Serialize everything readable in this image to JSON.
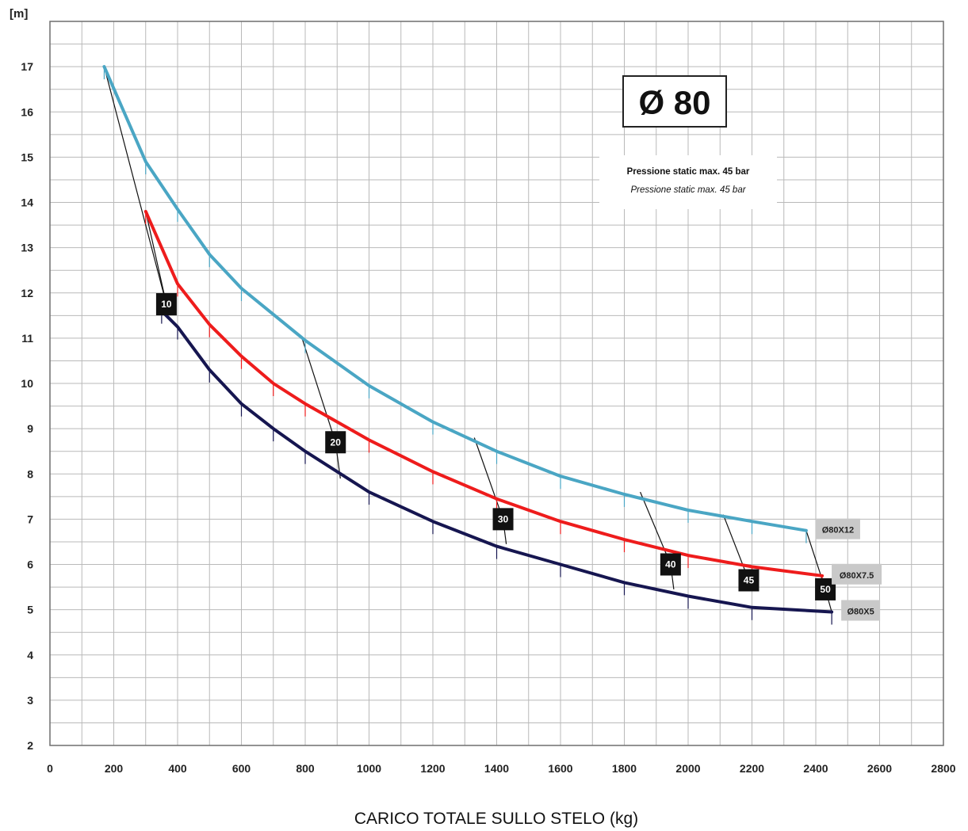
{
  "chart_data": {
    "type": "line",
    "title": "Ø 80",
    "note_lines": [
      "Pressione static max. 45 bar",
      "Pressione static max. 45 bar"
    ],
    "ylabel": "[m]",
    "xlabel": "CARICO TOTALE SULLO STELO (kg)",
    "xlim": [
      0,
      2800
    ],
    "ylim": [
      2,
      18
    ],
    "xticks": [
      0,
      200,
      400,
      600,
      800,
      1000,
      1200,
      1400,
      1600,
      1800,
      2000,
      2200,
      2400,
      2600,
      2800
    ],
    "yticks": [
      2,
      3,
      4,
      5,
      6,
      7,
      8,
      9,
      10,
      11,
      12,
      13,
      14,
      15,
      16,
      17
    ],
    "grid": true,
    "series": [
      {
        "name": "Ø80X12",
        "color": "#4aa6c4",
        "x": [
          170,
          300,
          400,
          500,
          600,
          800,
          1000,
          1200,
          1400,
          1600,
          1800,
          2000,
          2200,
          2370
        ],
        "y": [
          17.0,
          14.9,
          13.85,
          12.85,
          12.1,
          10.95,
          9.95,
          9.15,
          8.5,
          7.95,
          7.55,
          7.2,
          6.95,
          6.75
        ]
      },
      {
        "name": "Ø80X7.5",
        "color": "#ee1c1c",
        "x": [
          300,
          400,
          500,
          600,
          700,
          800,
          1000,
          1200,
          1400,
          1600,
          1800,
          2000,
          2200,
          2420
        ],
        "y": [
          13.8,
          12.2,
          11.3,
          10.6,
          10.0,
          9.55,
          8.75,
          8.05,
          7.45,
          6.95,
          6.55,
          6.2,
          5.95,
          5.75
        ]
      },
      {
        "name": "Ø80X5",
        "color": "#161650",
        "x": [
          350,
          400,
          500,
          600,
          700,
          800,
          1000,
          1200,
          1400,
          1600,
          1800,
          2000,
          2200,
          2450
        ],
        "y": [
          11.6,
          11.25,
          10.3,
          9.55,
          9.0,
          8.5,
          7.6,
          6.95,
          6.4,
          6.0,
          5.6,
          5.3,
          5.05,
          4.95
        ]
      }
    ],
    "pressure_labels": [
      {
        "label": "10",
        "x": 365,
        "y": 11.75
      },
      {
        "label": "20",
        "x": 895,
        "y": 8.7
      },
      {
        "label": "30",
        "x": 1420,
        "y": 7.0
      },
      {
        "label": "40",
        "x": 1945,
        "y": 6.0
      },
      {
        "label": "45",
        "x": 2190,
        "y": 5.65
      },
      {
        "label": "50",
        "x": 2430,
        "y": 5.45
      }
    ],
    "pressure_lines": [
      {
        "points": [
          [
            170,
            17.0
          ],
          [
            365,
            11.75
          ]
        ]
      },
      {
        "points": [
          [
            300,
            13.8
          ],
          [
            365,
            11.75
          ]
        ]
      },
      {
        "points": [
          [
            365,
            11.75
          ],
          [
            360,
            11.6
          ]
        ]
      },
      {
        "points": [
          [
            790,
            11.0
          ],
          [
            895,
            8.7
          ]
        ]
      },
      {
        "points": [
          [
            895,
            8.7
          ],
          [
            910,
            7.9
          ]
        ]
      },
      {
        "points": [
          [
            1330,
            8.8
          ],
          [
            1420,
            7.0
          ]
        ]
      },
      {
        "points": [
          [
            1420,
            7.0
          ],
          [
            1430,
            6.45
          ]
        ]
      },
      {
        "points": [
          [
            1850,
            7.6
          ],
          [
            1945,
            6.0
          ]
        ]
      },
      {
        "points": [
          [
            1945,
            6.0
          ],
          [
            1955,
            5.45
          ]
        ]
      },
      {
        "points": [
          [
            2110,
            7.1
          ],
          [
            2190,
            5.65
          ]
        ]
      },
      {
        "points": [
          [
            2370,
            6.75
          ],
          [
            2430,
            5.45
          ]
        ]
      },
      {
        "points": [
          [
            2430,
            5.45
          ],
          [
            2450,
            4.95
          ]
        ]
      }
    ]
  }
}
